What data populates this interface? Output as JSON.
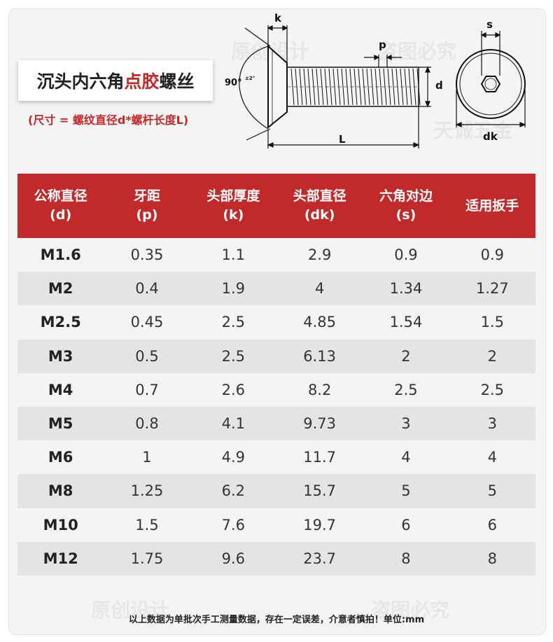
{
  "title": {
    "part1": "沉头内六角",
    "highlight": "点胶",
    "part2": "螺丝"
  },
  "subtitle": "(尺寸 = 螺纹直径d*螺杆长度L)",
  "diagram_labels": {
    "k": "k",
    "p": "p",
    "d": "d",
    "L": "L",
    "s": "s",
    "dk": "dk",
    "angle": "90°",
    "tolerance": "±2°"
  },
  "watermarks": [
    "原创设计",
    "盗图必究",
    "天诚五金"
  ],
  "table": {
    "headers": [
      {
        "line1": "公称直径",
        "line2": "(d)"
      },
      {
        "line1": "牙距",
        "line2": "(p)"
      },
      {
        "line1": "头部厚度",
        "line2": "(k)"
      },
      {
        "line1": "头部直径",
        "line2": "(dk)"
      },
      {
        "line1": "六角对边",
        "line2": "(s)"
      },
      {
        "line1": "适用扳手",
        "line2": ""
      }
    ],
    "rows": [
      [
        "M1.6",
        "0.35",
        "1.1",
        "2.9",
        "0.9",
        "0.9"
      ],
      [
        "M2",
        "0.4",
        "1.9",
        "4",
        "1.34",
        "1.27"
      ],
      [
        "M2.5",
        "0.45",
        "2.5",
        "4.85",
        "1.54",
        "1.5"
      ],
      [
        "M3",
        "0.5",
        "2.5",
        "6.13",
        "2",
        "2"
      ],
      [
        "M4",
        "0.7",
        "2.6",
        "8.2",
        "2.5",
        "2.5"
      ],
      [
        "M5",
        "0.8",
        "4.1",
        "9.73",
        "3",
        "3"
      ],
      [
        "M6",
        "1",
        "4.9",
        "11.7",
        "4",
        "4"
      ],
      [
        "M8",
        "1.25",
        "6.2",
        "15.7",
        "5",
        "5"
      ],
      [
        "M10",
        "1.5",
        "7.6",
        "19.7",
        "6",
        "6"
      ],
      [
        "M12",
        "1.75",
        "9.6",
        "23.7",
        "8",
        "8"
      ]
    ]
  },
  "footer": "以上数据为单批次手工测量数据，存在一定误差，介意者慎拍！单位:mm",
  "colors": {
    "accent": "#c22a2a",
    "stripe": "#e4e4e4",
    "background": "#f4f4f4"
  }
}
